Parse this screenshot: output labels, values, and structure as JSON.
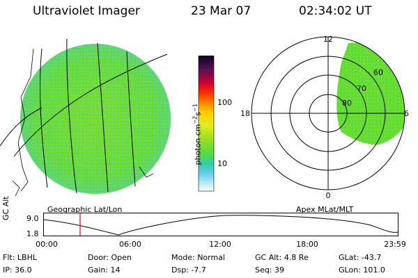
{
  "header": {
    "title": "Ultraviolet Imager",
    "date": "23 Mar 07",
    "time": "02:34:02 UT"
  },
  "colorbar": {
    "label_main": "photon cm",
    "label_sup1": "−2",
    "label_s": "s",
    "label_sup2": "−1",
    "tick_high": "100",
    "tick_low": "10"
  },
  "polar": {
    "labels": {
      "top": "12",
      "left": "18",
      "right": "6",
      "bottom": "0"
    },
    "lat_labels": [
      "60",
      "70",
      "80"
    ]
  },
  "projections": {
    "left": "Geographic Lat/Lon",
    "right": "Apex MLat/MLT"
  },
  "timeline": {
    "ylabel": "GC Alt",
    "ytick_high": "9.0",
    "ytick_low": "1.8",
    "xticks": [
      "00:00",
      "06:00",
      "12:00",
      "18:00",
      "23:59"
    ],
    "marker_time": "02:34"
  },
  "info": {
    "flt_label": "Flt:",
    "flt": "LBHL",
    "ip_label": "IP:",
    "ip": "36.0",
    "door_label": "Door:",
    "door": "Open",
    "gain_label": "Gain:",
    "gain": "14",
    "mode_label": "Mode:",
    "mode": "Normal",
    "dsp_label": "Dsp:",
    "dsp": "-7.7",
    "gcalt_label": "GC Alt:",
    "gcalt": "4.8 Re",
    "seq_label": "Seq:",
    "seq": "39",
    "glat_label": "GLat:",
    "glat": "-43.7",
    "glon_label": "GLon:",
    "glon": "101.0"
  },
  "colors": {
    "image_fill": "#66dd33",
    "image_edge": "#44ccaa",
    "marker": "#dd0000"
  }
}
